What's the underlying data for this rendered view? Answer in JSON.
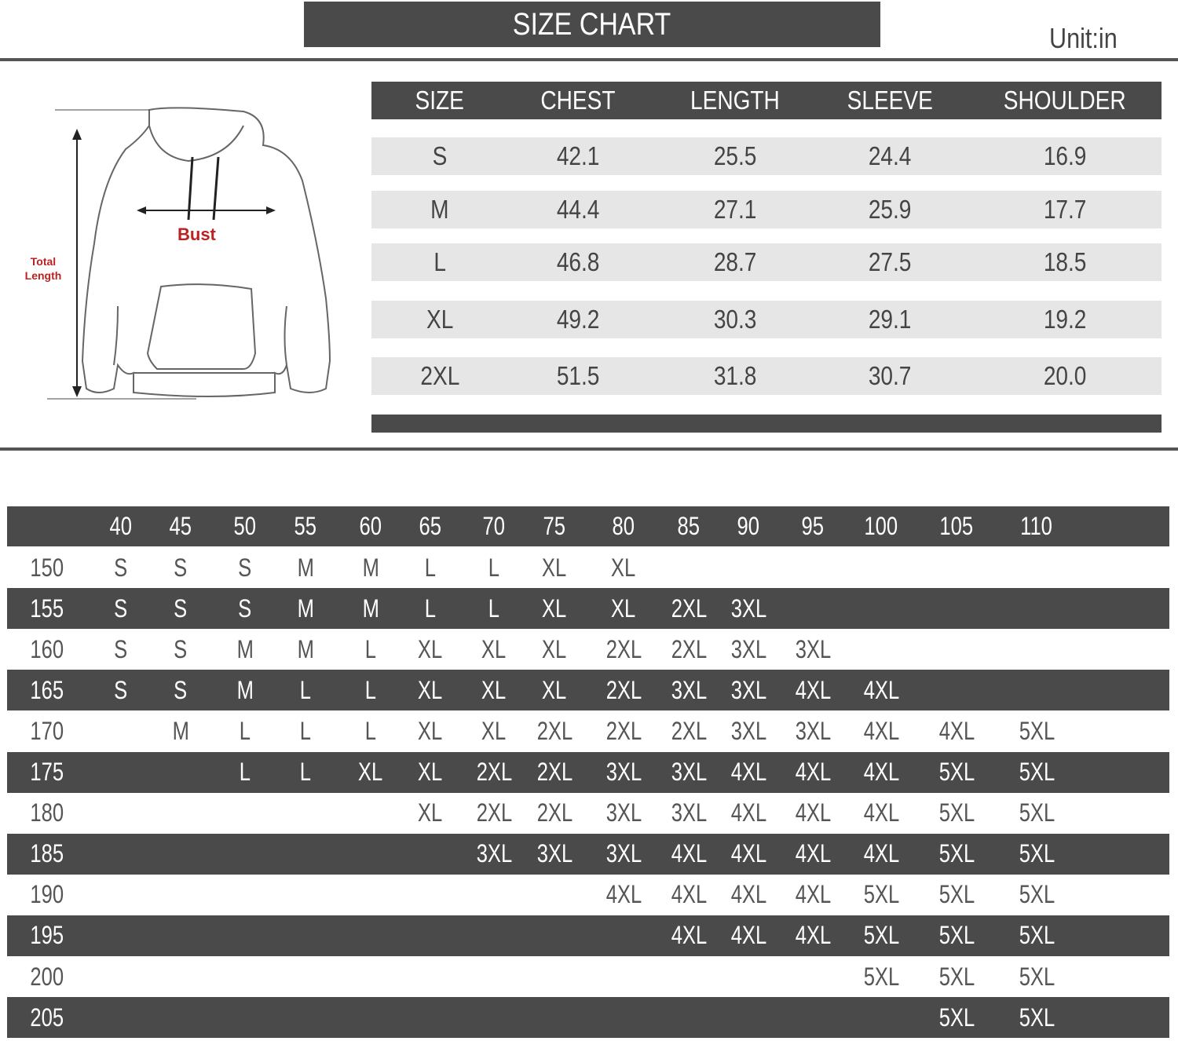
{
  "header": {
    "title": "SIZE CHART",
    "unit": "Unit:in"
  },
  "diagram": {
    "bust_label": "Bust",
    "length_label_1": "Total",
    "length_label_2": "Length"
  },
  "size_table": {
    "columns": [
      "SIZE",
      "CHEST",
      "LENGTH",
      "SLEEVE",
      "SHOULDER"
    ],
    "rows": [
      [
        "S",
        "42.1",
        "25.5",
        "24.4",
        "16.9"
      ],
      [
        "M",
        "44.4",
        "27.1",
        "25.9",
        "17.7"
      ],
      [
        "L",
        "46.8",
        "28.7",
        "27.5",
        "18.5"
      ],
      [
        "XL",
        "49.2",
        "30.3",
        "29.1",
        "19.2"
      ],
      [
        "2XL",
        "51.5",
        "31.8",
        "30.7",
        "20.0"
      ]
    ]
  },
  "fit_table": {
    "weights": [
      "40",
      "45",
      "50",
      "55",
      "60",
      "65",
      "70",
      "75",
      "80",
      "85",
      "90",
      "95",
      "100",
      "105",
      "110"
    ],
    "rows": [
      {
        "height": "150",
        "sizes": [
          "S",
          "S",
          "S",
          "M",
          "M",
          "L",
          "L",
          "XL",
          "XL",
          "",
          "",
          "",
          "",
          "",
          ""
        ]
      },
      {
        "height": "155",
        "sizes": [
          "S",
          "S",
          "S",
          "M",
          "M",
          "L",
          "L",
          "XL",
          "XL",
          "2XL",
          "3XL",
          "",
          "",
          "",
          ""
        ]
      },
      {
        "height": "160",
        "sizes": [
          "S",
          "S",
          "M",
          "M",
          "L",
          "XL",
          "XL",
          "XL",
          "2XL",
          "2XL",
          "3XL",
          "3XL",
          "",
          "",
          ""
        ]
      },
      {
        "height": "165",
        "sizes": [
          "S",
          "S",
          "M",
          "L",
          "L",
          "XL",
          "XL",
          "XL",
          "2XL",
          "3XL",
          "3XL",
          "4XL",
          "4XL",
          "",
          ""
        ]
      },
      {
        "height": "170",
        "sizes": [
          "",
          "M",
          "L",
          "L",
          "L",
          "XL",
          "XL",
          "2XL",
          "2XL",
          "2XL",
          "3XL",
          "3XL",
          "4XL",
          "4XL",
          "5XL"
        ]
      },
      {
        "height": "175",
        "sizes": [
          "",
          "",
          "L",
          "L",
          "XL",
          "XL",
          "2XL",
          "2XL",
          "3XL",
          "3XL",
          "4XL",
          "4XL",
          "4XL",
          "5XL",
          "5XL"
        ]
      },
      {
        "height": "180",
        "sizes": [
          "",
          "",
          "",
          "",
          "",
          "XL",
          "2XL",
          "2XL",
          "3XL",
          "3XL",
          "4XL",
          "4XL",
          "4XL",
          "5XL",
          "5XL"
        ]
      },
      {
        "height": "185",
        "sizes": [
          "",
          "",
          "",
          "",
          "",
          "",
          "3XL",
          "3XL",
          "3XL",
          "4XL",
          "4XL",
          "4XL",
          "4XL",
          "5XL",
          "5XL"
        ]
      },
      {
        "height": "190",
        "sizes": [
          "",
          "",
          "",
          "",
          "",
          "",
          "",
          "",
          "4XL",
          "4XL",
          "4XL",
          "4XL",
          "5XL",
          "5XL",
          "5XL"
        ]
      },
      {
        "height": "195",
        "sizes": [
          "",
          "",
          "",
          "",
          "",
          "",
          "",
          "",
          "",
          "4XL",
          "4XL",
          "4XL",
          "5XL",
          "5XL",
          "5XL"
        ]
      },
      {
        "height": "200",
        "sizes": [
          "",
          "",
          "",
          "",
          "",
          "",
          "",
          "",
          "",
          "",
          "",
          "",
          "5XL",
          "5XL",
          "5XL"
        ]
      },
      {
        "height": "205",
        "sizes": [
          "",
          "",
          "",
          "",
          "",
          "",
          "",
          "",
          "",
          "",
          "",
          "",
          "",
          "5XL",
          "5XL"
        ]
      }
    ]
  },
  "colors": {
    "dark": "#4a4a4a",
    "light_row": "#e6e6e6",
    "label_red": "#b22222"
  }
}
